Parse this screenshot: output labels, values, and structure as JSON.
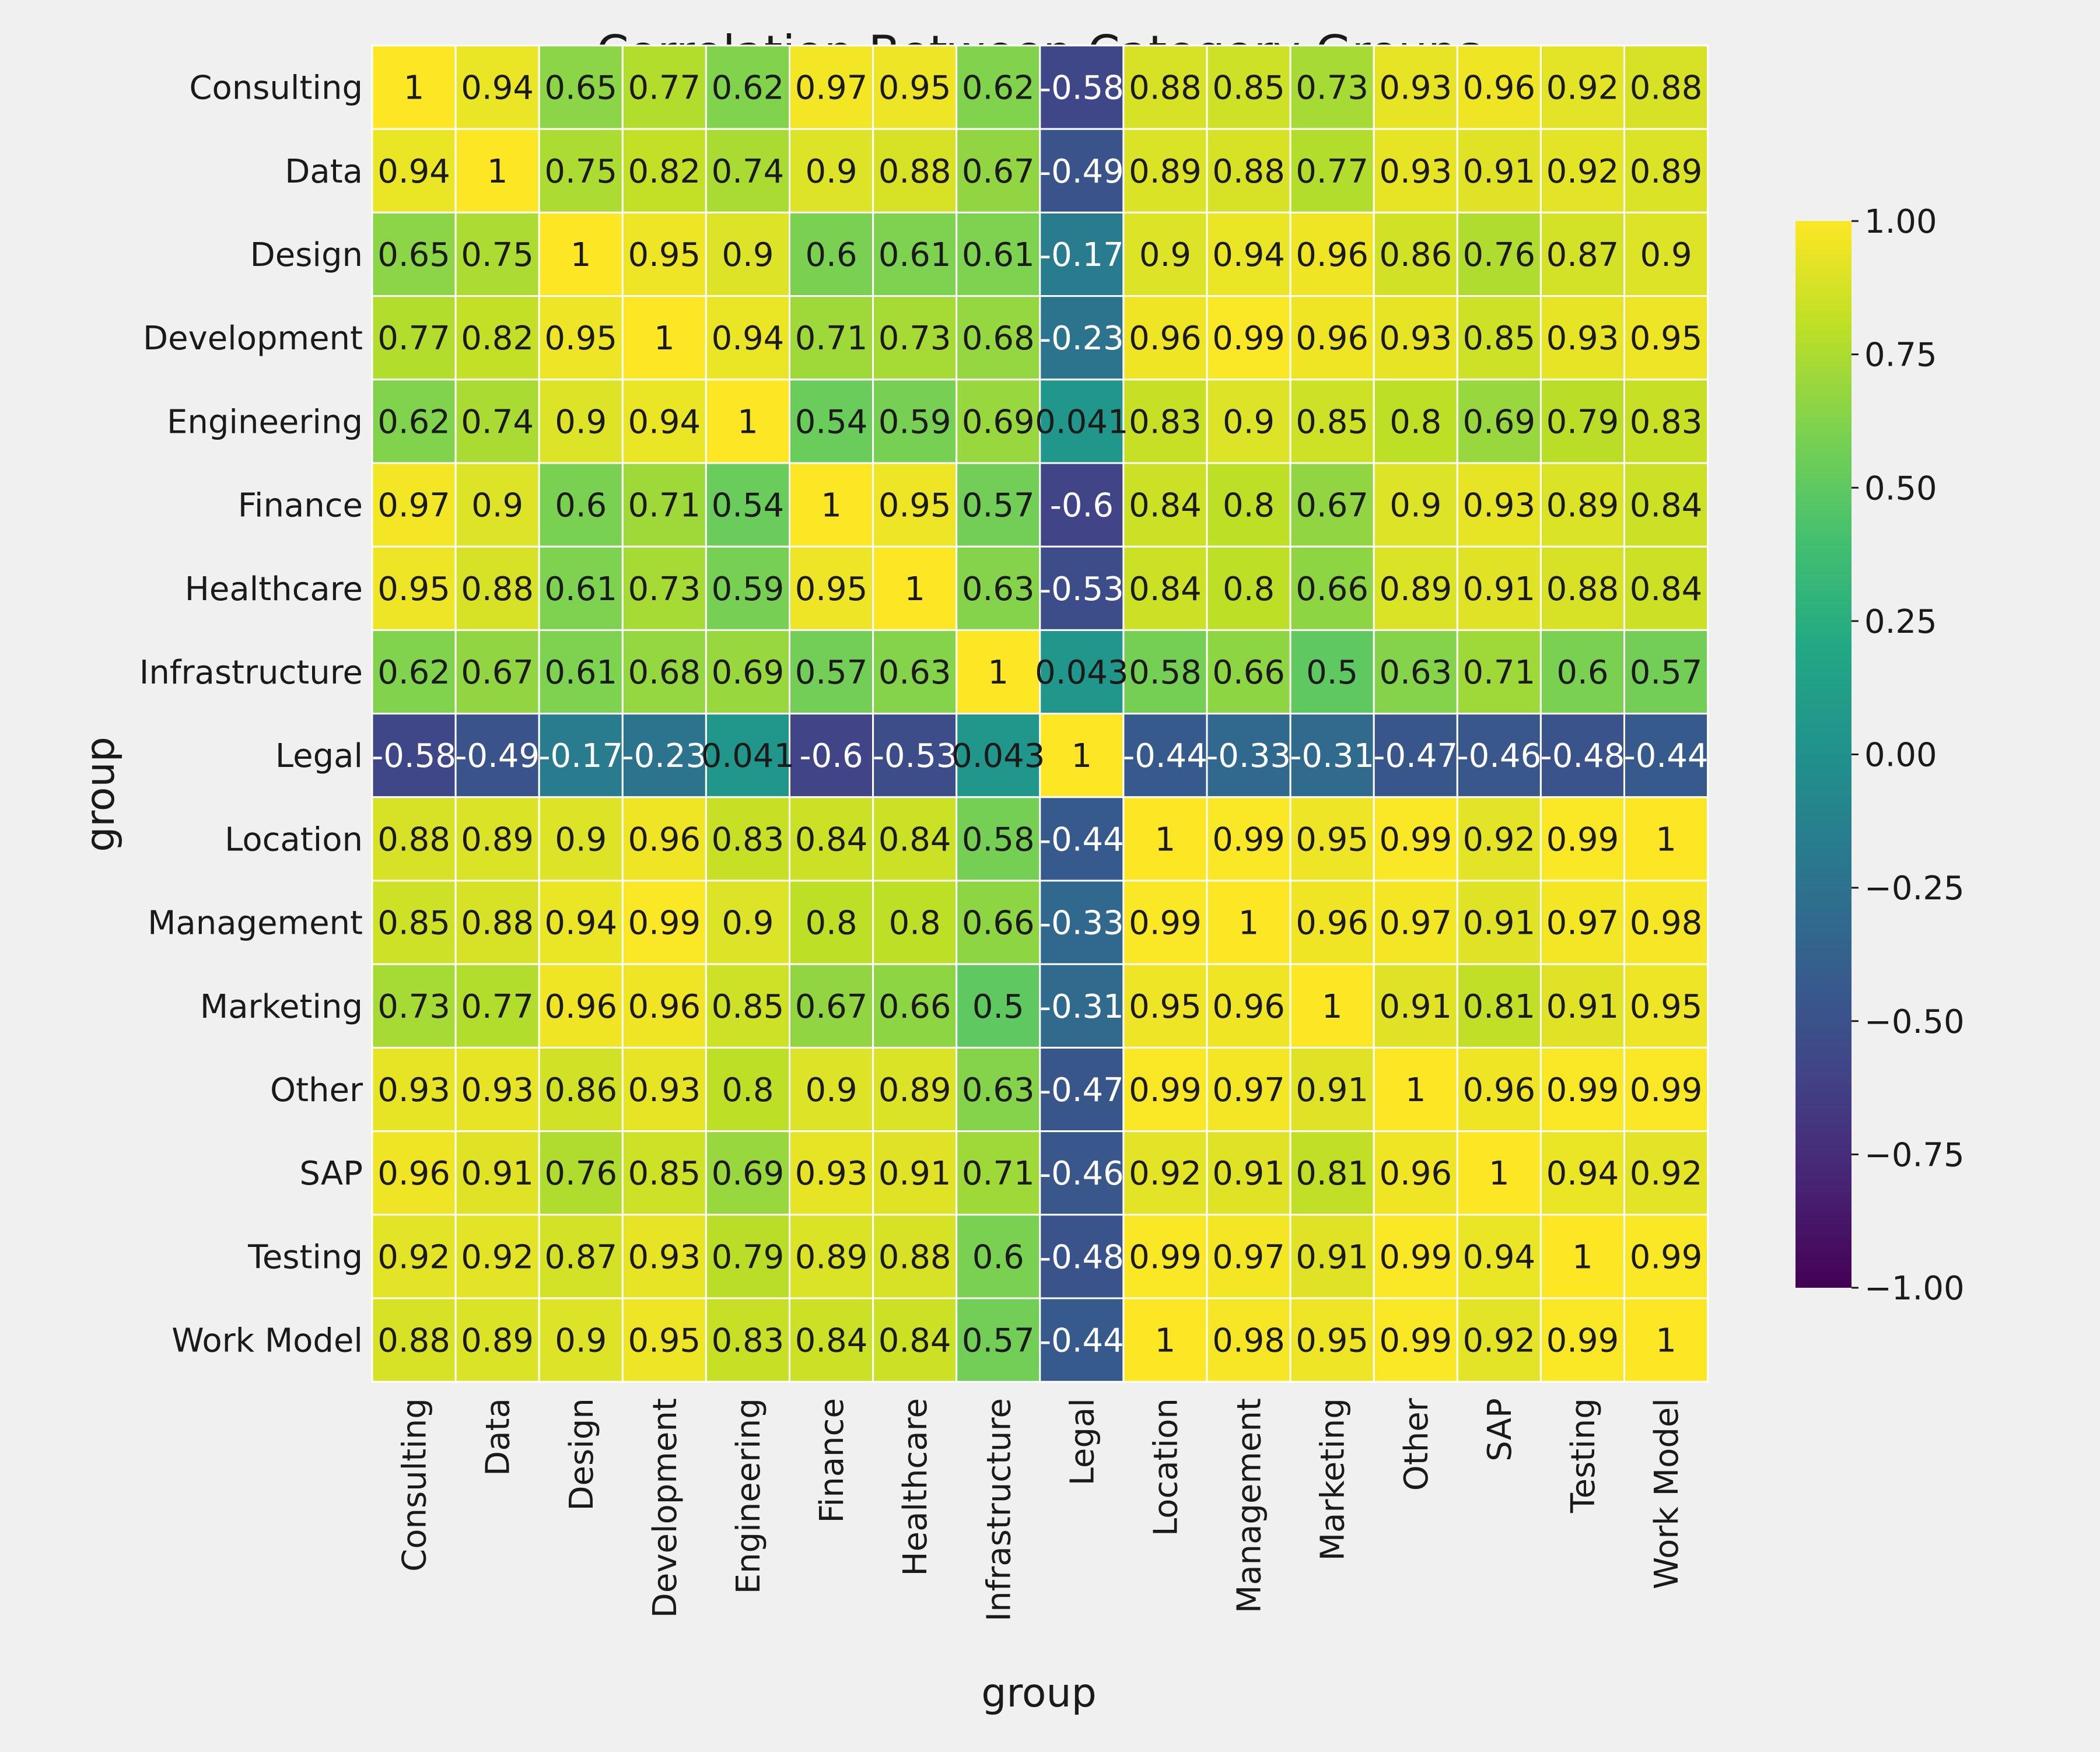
{
  "chart_data": {
    "type": "heatmap",
    "title": "Correlation Between Category Groups",
    "xlabel": "group",
    "ylabel": "group",
    "x_categories": [
      "Consulting",
      "Data",
      "Design",
      "Development",
      "Engineering",
      "Finance",
      "Healthcare",
      "Infrastructure",
      "Legal",
      "Location",
      "Management",
      "Marketing",
      "Other",
      "SAP",
      "Testing",
      "Work Model"
    ],
    "y_categories": [
      "Consulting",
      "Data",
      "Design",
      "Development",
      "Engineering",
      "Finance",
      "Healthcare",
      "Infrastructure",
      "Legal",
      "Location",
      "Management",
      "Marketing",
      "Other",
      "SAP",
      "Testing",
      "Work Model"
    ],
    "values": [
      [
        1,
        0.94,
        0.65,
        0.77,
        0.62,
        0.97,
        0.95,
        0.62,
        -0.58,
        0.88,
        0.85,
        0.73,
        0.93,
        0.96,
        0.92,
        0.88
      ],
      [
        0.94,
        1,
        0.75,
        0.82,
        0.74,
        0.9,
        0.88,
        0.67,
        -0.49,
        0.89,
        0.88,
        0.77,
        0.93,
        0.91,
        0.92,
        0.89
      ],
      [
        0.65,
        0.75,
        1,
        0.95,
        0.9,
        0.6,
        0.61,
        0.61,
        -0.17,
        0.9,
        0.94,
        0.96,
        0.86,
        0.76,
        0.87,
        0.9
      ],
      [
        0.77,
        0.82,
        0.95,
        1,
        0.94,
        0.71,
        0.73,
        0.68,
        -0.23,
        0.96,
        0.99,
        0.96,
        0.93,
        0.85,
        0.93,
        0.95
      ],
      [
        0.62,
        0.74,
        0.9,
        0.94,
        1,
        0.54,
        0.59,
        0.69,
        0.041,
        0.83,
        0.9,
        0.85,
        0.8,
        0.69,
        0.79,
        0.83
      ],
      [
        0.97,
        0.9,
        0.6,
        0.71,
        0.54,
        1,
        0.95,
        0.57,
        -0.6,
        0.84,
        0.8,
        0.67,
        0.9,
        0.93,
        0.89,
        0.84
      ],
      [
        0.95,
        0.88,
        0.61,
        0.73,
        0.59,
        0.95,
        1,
        0.63,
        -0.53,
        0.84,
        0.8,
        0.66,
        0.89,
        0.91,
        0.88,
        0.84
      ],
      [
        0.62,
        0.67,
        0.61,
        0.68,
        0.69,
        0.57,
        0.63,
        1,
        0.043,
        0.58,
        0.66,
        0.5,
        0.63,
        0.71,
        0.6,
        0.57
      ],
      [
        -0.58,
        -0.49,
        -0.17,
        -0.23,
        0.041,
        -0.6,
        -0.53,
        0.043,
        1,
        -0.44,
        -0.33,
        -0.31,
        -0.47,
        -0.46,
        -0.48,
        -0.44
      ],
      [
        0.88,
        0.89,
        0.9,
        0.96,
        0.83,
        0.84,
        0.84,
        0.58,
        -0.44,
        1,
        0.99,
        0.95,
        0.99,
        0.92,
        0.99,
        1
      ],
      [
        0.85,
        0.88,
        0.94,
        0.99,
        0.9,
        0.8,
        0.8,
        0.66,
        -0.33,
        0.99,
        1,
        0.96,
        0.97,
        0.91,
        0.97,
        0.98
      ],
      [
        0.73,
        0.77,
        0.96,
        0.96,
        0.85,
        0.67,
        0.66,
        0.5,
        -0.31,
        0.95,
        0.96,
        1,
        0.91,
        0.81,
        0.91,
        0.95
      ],
      [
        0.93,
        0.93,
        0.86,
        0.93,
        0.8,
        0.9,
        0.89,
        0.63,
        -0.47,
        0.99,
        0.97,
        0.91,
        1,
        0.96,
        0.99,
        0.99
      ],
      [
        0.96,
        0.91,
        0.76,
        0.85,
        0.69,
        0.93,
        0.91,
        0.71,
        -0.46,
        0.92,
        0.91,
        0.81,
        0.96,
        1,
        0.94,
        0.92
      ],
      [
        0.92,
        0.92,
        0.87,
        0.93,
        0.79,
        0.89,
        0.88,
        0.6,
        -0.48,
        0.99,
        0.97,
        0.91,
        0.99,
        0.94,
        1,
        0.99
      ],
      [
        0.88,
        0.89,
        0.9,
        0.95,
        0.83,
        0.84,
        0.84,
        0.57,
        -0.44,
        1,
        0.98,
        0.95,
        0.99,
        0.92,
        0.99,
        1
      ]
    ],
    "cell_labels": [
      [
        "1",
        "0.94",
        "0.65",
        "0.77",
        "0.62",
        "0.97",
        "0.95",
        "0.62",
        "-0.58",
        "0.88",
        "0.85",
        "0.73",
        "0.93",
        "0.96",
        "0.92",
        "0.88"
      ],
      [
        "0.94",
        "1",
        "0.75",
        "0.82",
        "0.74",
        "0.9",
        "0.88",
        "0.67",
        "-0.49",
        "0.89",
        "0.88",
        "0.77",
        "0.93",
        "0.91",
        "0.92",
        "0.89"
      ],
      [
        "0.65",
        "0.75",
        "1",
        "0.95",
        "0.9",
        "0.6",
        "0.61",
        "0.61",
        "-0.17",
        "0.9",
        "0.94",
        "0.96",
        "0.86",
        "0.76",
        "0.87",
        "0.9"
      ],
      [
        "0.77",
        "0.82",
        "0.95",
        "1",
        "0.94",
        "0.71",
        "0.73",
        "0.68",
        "-0.23",
        "0.96",
        "0.99",
        "0.96",
        "0.93",
        "0.85",
        "0.93",
        "0.95"
      ],
      [
        "0.62",
        "0.74",
        "0.9",
        "0.94",
        "1",
        "0.54",
        "0.59",
        "0.69",
        "0.041",
        "0.83",
        "0.9",
        "0.85",
        "0.8",
        "0.69",
        "0.79",
        "0.83"
      ],
      [
        "0.97",
        "0.9",
        "0.6",
        "0.71",
        "0.54",
        "1",
        "0.95",
        "0.57",
        "-0.6",
        "0.84",
        "0.8",
        "0.67",
        "0.9",
        "0.93",
        "0.89",
        "0.84"
      ],
      [
        "0.95",
        "0.88",
        "0.61",
        "0.73",
        "0.59",
        "0.95",
        "1",
        "0.63",
        "-0.53",
        "0.84",
        "0.8",
        "0.66",
        "0.89",
        "0.91",
        "0.88",
        "0.84"
      ],
      [
        "0.62",
        "0.67",
        "0.61",
        "0.68",
        "0.69",
        "0.57",
        "0.63",
        "1",
        "0.043",
        "0.58",
        "0.66",
        "0.5",
        "0.63",
        "0.71",
        "0.6",
        "0.57"
      ],
      [
        "-0.58",
        "-0.49",
        "-0.17",
        "-0.23",
        "0.041",
        "-0.6",
        "-0.53",
        "0.043",
        "1",
        "-0.44",
        "-0.33",
        "-0.31",
        "-0.47",
        "-0.46",
        "-0.48",
        "-0.44"
      ],
      [
        "0.88",
        "0.89",
        "0.9",
        "0.96",
        "0.83",
        "0.84",
        "0.84",
        "0.58",
        "-0.44",
        "1",
        "0.99",
        "0.95",
        "0.99",
        "0.92",
        "0.99",
        "1"
      ],
      [
        "0.85",
        "0.88",
        "0.94",
        "0.99",
        "0.9",
        "0.8",
        "0.8",
        "0.66",
        "-0.33",
        "0.99",
        "1",
        "0.96",
        "0.97",
        "0.91",
        "0.97",
        "0.98"
      ],
      [
        "0.73",
        "0.77",
        "0.96",
        "0.96",
        "0.85",
        "0.67",
        "0.66",
        "0.5",
        "-0.31",
        "0.95",
        "0.96",
        "1",
        "0.91",
        "0.81",
        "0.91",
        "0.95"
      ],
      [
        "0.93",
        "0.93",
        "0.86",
        "0.93",
        "0.8",
        "0.9",
        "0.89",
        "0.63",
        "-0.47",
        "0.99",
        "0.97",
        "0.91",
        "1",
        "0.96",
        "0.99",
        "0.99"
      ],
      [
        "0.96",
        "0.91",
        "0.76",
        "0.85",
        "0.69",
        "0.93",
        "0.91",
        "0.71",
        "-0.46",
        "0.92",
        "0.91",
        "0.81",
        "0.96",
        "1",
        "0.94",
        "0.92"
      ],
      [
        "0.92",
        "0.92",
        "0.87",
        "0.93",
        "0.79",
        "0.89",
        "0.88",
        "0.6",
        "-0.48",
        "0.99",
        "0.97",
        "0.91",
        "0.99",
        "0.94",
        "1",
        "0.99"
      ],
      [
        "0.88",
        "0.89",
        "0.9",
        "0.95",
        "0.83",
        "0.84",
        "0.84",
        "0.57",
        "-0.44",
        "1",
        "0.98",
        "0.95",
        "0.99",
        "0.92",
        "0.99",
        "1"
      ]
    ],
    "colorbar": {
      "vmin": -1,
      "vmax": 1,
      "colormap": "viridis",
      "tick_values": [
        1.0,
        0.75,
        0.5,
        0.25,
        0.0,
        -0.25,
        -0.5,
        -0.75,
        -1.0
      ],
      "tick_labels": [
        "1.00",
        "0.75",
        "0.50",
        "0.25",
        "0.00",
        "−0.25",
        "−0.50",
        "−0.75",
        "−1.00"
      ]
    },
    "colors": {
      "background": "#f0f0f0",
      "cell_border": "#ffffff",
      "text": "#1a1a1a",
      "light_text": "#ffffff"
    }
  }
}
